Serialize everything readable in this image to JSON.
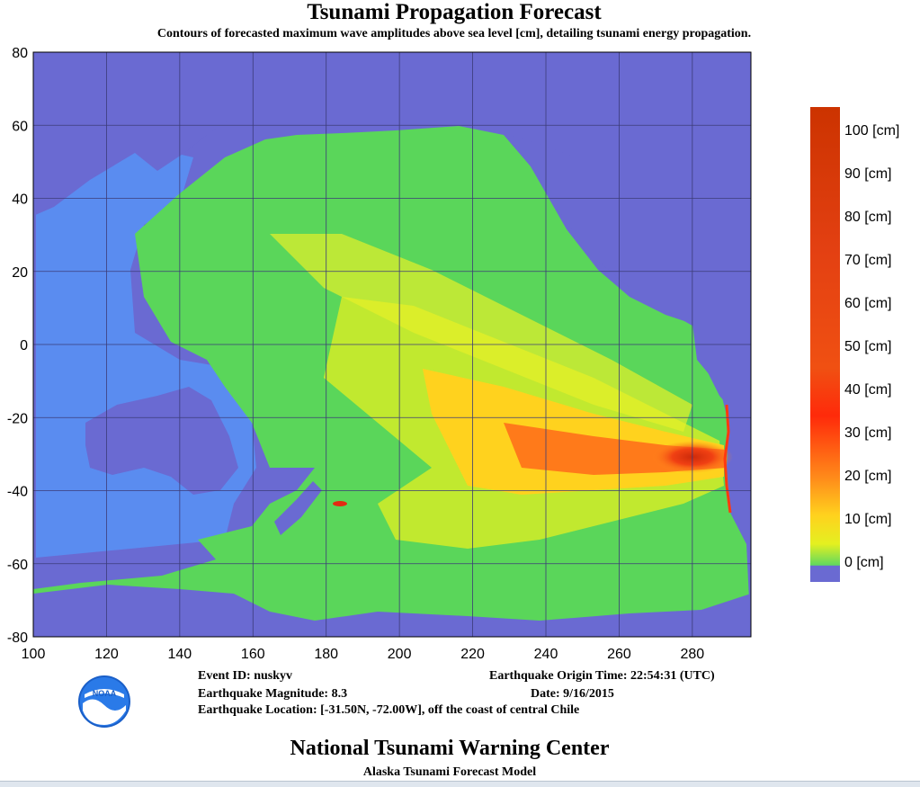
{
  "title": "Tsunami Propagation Forecast",
  "subtitle": "Contours of forecasted maximum wave amplitudes above sea level [cm], detailing tsunami energy propagation.",
  "map": {
    "x_ticks": [
      "100",
      "120",
      "140",
      "160",
      "180",
      "200",
      "220",
      "240",
      "260",
      "280"
    ],
    "y_ticks": [
      "80",
      "60",
      "40",
      "20",
      "0",
      "-20",
      "-40",
      "-60",
      "-80"
    ],
    "lon_range": [
      100,
      296
    ],
    "lat_range": [
      -80,
      80
    ],
    "epicenter": {
      "lat": -31.5,
      "lon": 288.0
    },
    "colors": {
      "land": "#6a6ad2",
      "ocean_low": "#5ad65a",
      "ocean_mid": "#d4ec28",
      "ocean_high": "#ffd21e",
      "ocean_peak": "#e52a12"
    }
  },
  "colorbar": {
    "labels": [
      "100 [cm]",
      "90 [cm]",
      "80 [cm]",
      "70 [cm]",
      "60 [cm]",
      "50 [cm]",
      "40 [cm]",
      "30 [cm]",
      "20 [cm]",
      "10 [cm]",
      "0 [cm]"
    ],
    "stops": [
      "#cc3300",
      "#d63a0a",
      "#e04410",
      "#ea4e14",
      "#f05a18",
      "#f5661c",
      "#fa5a14",
      "#ff2a0a",
      "#ff7a1a",
      "#ffc21e",
      "#e6f020",
      "#60d860",
      "#6a6ad2"
    ]
  },
  "event": {
    "id_label": "Event ID: nuskyv",
    "magnitude_label": "Earthquake Magnitude: 8.3",
    "location_label": "Earthquake Location: [-31.50N, -72.00W], off the coast of central Chile",
    "origin_time_label": "Earthquake Origin Time: 22:54:31 (UTC)",
    "date_label": "Date: 9/16/2015"
  },
  "logo": {
    "text": "NOAA"
  },
  "footer": {
    "title": "National Tsunami Warning Center",
    "subtitle": "Alaska Tsunami Forecast Model"
  }
}
